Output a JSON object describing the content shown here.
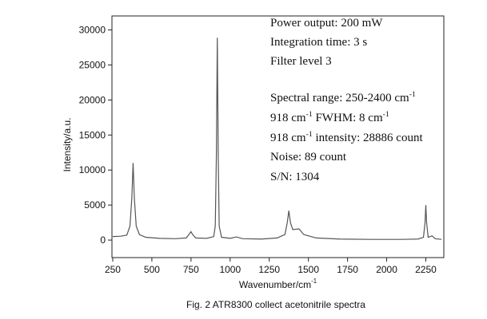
{
  "chart_data": {
    "type": "line",
    "xlabel": [
      {
        "t": "Wavenumber/cm"
      },
      {
        "sup": "-1"
      }
    ],
    "ylabel": "Intensity/a.u.",
    "caption": "Fig. 2 ATR8300 collect acetonitrile spectra",
    "annotations": [
      [
        {
          "t": "Power output: 200 mW"
        }
      ],
      [
        {
          "t": "Integration time: 3 s"
        }
      ],
      [
        {
          "t": "Filter level 3"
        }
      ],
      [
        {
          "t": "Spectral range: 250-2400 cm"
        },
        {
          "sup": "-1"
        }
      ],
      [
        {
          "t": "918 cm"
        },
        {
          "sup": "-1"
        },
        {
          "t": " FWHM: 8 cm"
        },
        {
          "sup": "-1"
        }
      ],
      [
        {
          "t": "918 cm"
        },
        {
          "sup": "-1"
        },
        {
          "t": " intensity: 28886 count"
        }
      ],
      [
        {
          "t": "Noise: 89 count"
        }
      ],
      [
        {
          "t": "S/N: 1304"
        }
      ]
    ],
    "x": [
      250,
      300,
      340,
      360,
      372,
      380,
      388,
      400,
      420,
      460,
      550,
      650,
      720,
      740,
      750,
      760,
      780,
      850,
      895,
      905,
      912,
      918,
      924,
      930,
      945,
      1000,
      1040,
      1080,
      1200,
      1300,
      1350,
      1365,
      1375,
      1385,
      1400,
      1440,
      1470,
      1550,
      1700,
      1900,
      2100,
      2200,
      2235,
      2245,
      2250,
      2255,
      2265,
      2290,
      2310,
      2350
    ],
    "series": [
      {
        "color": "#555555",
        "values": [
          500,
          550,
          700,
          2000,
          6000,
          11000,
          6000,
          2000,
          800,
          400,
          250,
          200,
          300,
          900,
          1200,
          800,
          300,
          250,
          500,
          2000,
          12000,
          28886,
          12000,
          2000,
          400,
          250,
          450,
          200,
          150,
          300,
          800,
          2500,
          4200,
          2500,
          1500,
          1600,
          800,
          300,
          150,
          100,
          100,
          150,
          400,
          2500,
          5000,
          2500,
          400,
          600,
          200,
          100
        ]
      }
    ],
    "xlim": [
      245,
      2365
    ],
    "ylim": [
      -2500,
      32000
    ],
    "xticks": [
      250,
      500,
      750,
      1000,
      1250,
      1500,
      1750,
      2000,
      2250
    ],
    "yticks": [
      0,
      5000,
      10000,
      15000,
      20000,
      25000,
      30000
    ]
  }
}
